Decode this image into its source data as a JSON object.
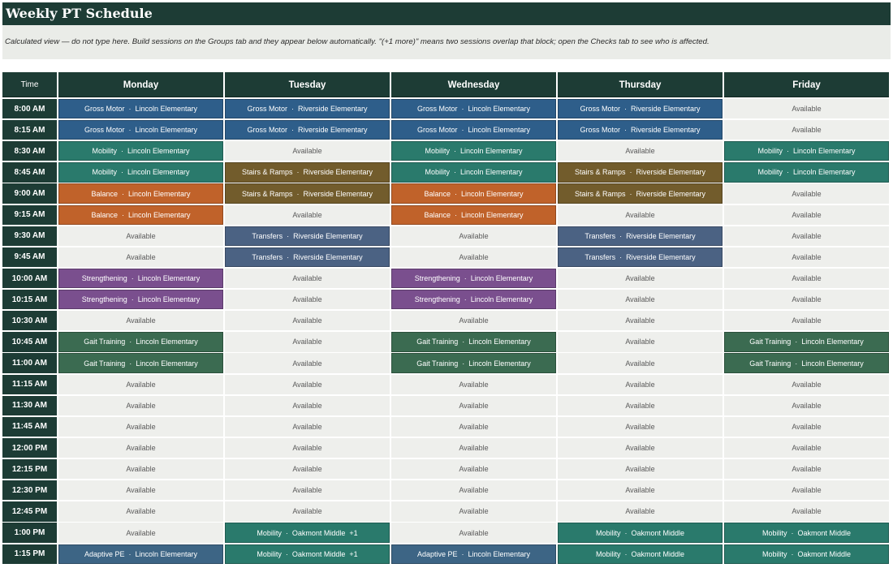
{
  "title": "Weekly PT Schedule",
  "note": "Calculated view — do not type here. Build sessions on the Groups tab and they appear below automatically. \"(+1 more)\" means two sessions overlap that block; open the Checks tab to see who is affected.",
  "columns": [
    "Time",
    "Monday",
    "Tuesday",
    "Wednesday",
    "Thursday",
    "Friday"
  ],
  "colors": {
    "Gross Motor": "#2e5e8a",
    "Mobility": "#2a7a6c",
    "Stairs & Ramps": "#725c2c",
    "Balance": "#c0622a",
    "Transfers": "#4b6283",
    "Strengthening": "#7a4f8e",
    "Gait Training": "#3b6b51",
    "Adaptive PE": "#3d6585",
    "Available": "#eeefec"
  },
  "rows": [
    {
      "time": "8:00 AM",
      "cells": [
        "Gross Motor  ·  Lincoln Elementary",
        "Gross Motor  ·  Riverside Elementary",
        "Gross Motor  ·  Lincoln Elementary",
        "Gross Motor  ·  Riverside Elementary",
        "Available"
      ],
      "kinds": [
        "Gross Motor",
        "Gross Motor",
        "Gross Motor",
        "Gross Motor",
        "Available"
      ]
    },
    {
      "time": "8:15 AM",
      "cells": [
        "Gross Motor  ·  Lincoln Elementary",
        "Gross Motor  ·  Riverside Elementary",
        "Gross Motor  ·  Lincoln Elementary",
        "Gross Motor  ·  Riverside Elementary",
        "Available"
      ],
      "kinds": [
        "Gross Motor",
        "Gross Motor",
        "Gross Motor",
        "Gross Motor",
        "Available"
      ]
    },
    {
      "time": "8:30 AM",
      "cells": [
        "Mobility  ·  Lincoln Elementary",
        "Available",
        "Mobility  ·  Lincoln Elementary",
        "Available",
        "Mobility  ·  Lincoln Elementary"
      ],
      "kinds": [
        "Mobility",
        "Available",
        "Mobility",
        "Available",
        "Mobility"
      ]
    },
    {
      "time": "8:45 AM",
      "cells": [
        "Mobility  ·  Lincoln Elementary",
        "Stairs & Ramps  ·  Riverside Elementary",
        "Mobility  ·  Lincoln Elementary",
        "Stairs & Ramps  ·  Riverside Elementary",
        "Mobility  ·  Lincoln Elementary"
      ],
      "kinds": [
        "Mobility",
        "Stairs & Ramps",
        "Mobility",
        "Stairs & Ramps",
        "Mobility"
      ]
    },
    {
      "time": "9:00 AM",
      "cells": [
        "Balance  ·  Lincoln Elementary",
        "Stairs & Ramps  ·  Riverside Elementary",
        "Balance  ·  Lincoln Elementary",
        "Stairs & Ramps  ·  Riverside Elementary",
        "Available"
      ],
      "kinds": [
        "Balance",
        "Stairs & Ramps",
        "Balance",
        "Stairs & Ramps",
        "Available"
      ]
    },
    {
      "time": "9:15 AM",
      "cells": [
        "Balance  ·  Lincoln Elementary",
        "Available",
        "Balance  ·  Lincoln Elementary",
        "Available",
        "Available"
      ],
      "kinds": [
        "Balance",
        "Available",
        "Balance",
        "Available",
        "Available"
      ]
    },
    {
      "time": "9:30 AM",
      "cells": [
        "Available",
        "Transfers  ·  Riverside Elementary",
        "Available",
        "Transfers  ·  Riverside Elementary",
        "Available"
      ],
      "kinds": [
        "Available",
        "Transfers",
        "Available",
        "Transfers",
        "Available"
      ]
    },
    {
      "time": "9:45 AM",
      "cells": [
        "Available",
        "Transfers  ·  Riverside Elementary",
        "Available",
        "Transfers  ·  Riverside Elementary",
        "Available"
      ],
      "kinds": [
        "Available",
        "Transfers",
        "Available",
        "Transfers",
        "Available"
      ]
    },
    {
      "time": "10:00 AM",
      "cells": [
        "Strengthening  ·  Lincoln Elementary",
        "Available",
        "Strengthening  ·  Lincoln Elementary",
        "Available",
        "Available"
      ],
      "kinds": [
        "Strengthening",
        "Available",
        "Strengthening",
        "Available",
        "Available"
      ]
    },
    {
      "time": "10:15 AM",
      "cells": [
        "Strengthening  ·  Lincoln Elementary",
        "Available",
        "Strengthening  ·  Lincoln Elementary",
        "Available",
        "Available"
      ],
      "kinds": [
        "Strengthening",
        "Available",
        "Strengthening",
        "Available",
        "Available"
      ]
    },
    {
      "time": "10:30 AM",
      "cells": [
        "Available",
        "Available",
        "Available",
        "Available",
        "Available"
      ],
      "kinds": [
        "Available",
        "Available",
        "Available",
        "Available",
        "Available"
      ]
    },
    {
      "time": "10:45 AM",
      "cells": [
        "Gait Training  ·  Lincoln Elementary",
        "Available",
        "Gait Training  ·  Lincoln Elementary",
        "Available",
        "Gait Training  ·  Lincoln Elementary"
      ],
      "kinds": [
        "Gait Training",
        "Available",
        "Gait Training",
        "Available",
        "Gait Training"
      ]
    },
    {
      "time": "11:00 AM",
      "cells": [
        "Gait Training  ·  Lincoln Elementary",
        "Available",
        "Gait Training  ·  Lincoln Elementary",
        "Available",
        "Gait Training  ·  Lincoln Elementary"
      ],
      "kinds": [
        "Gait Training",
        "Available",
        "Gait Training",
        "Available",
        "Gait Training"
      ]
    },
    {
      "time": "11:15 AM",
      "cells": [
        "Available",
        "Available",
        "Available",
        "Available",
        "Available"
      ],
      "kinds": [
        "Available",
        "Available",
        "Available",
        "Available",
        "Available"
      ]
    },
    {
      "time": "11:30 AM",
      "cells": [
        "Available",
        "Available",
        "Available",
        "Available",
        "Available"
      ],
      "kinds": [
        "Available",
        "Available",
        "Available",
        "Available",
        "Available"
      ]
    },
    {
      "time": "11:45 AM",
      "cells": [
        "Available",
        "Available",
        "Available",
        "Available",
        "Available"
      ],
      "kinds": [
        "Available",
        "Available",
        "Available",
        "Available",
        "Available"
      ]
    },
    {
      "time": "12:00 PM",
      "cells": [
        "Available",
        "Available",
        "Available",
        "Available",
        "Available"
      ],
      "kinds": [
        "Available",
        "Available",
        "Available",
        "Available",
        "Available"
      ]
    },
    {
      "time": "12:15 PM",
      "cells": [
        "Available",
        "Available",
        "Available",
        "Available",
        "Available"
      ],
      "kinds": [
        "Available",
        "Available",
        "Available",
        "Available",
        "Available"
      ]
    },
    {
      "time": "12:30 PM",
      "cells": [
        "Available",
        "Available",
        "Available",
        "Available",
        "Available"
      ],
      "kinds": [
        "Available",
        "Available",
        "Available",
        "Available",
        "Available"
      ]
    },
    {
      "time": "12:45 PM",
      "cells": [
        "Available",
        "Available",
        "Available",
        "Available",
        "Available"
      ],
      "kinds": [
        "Available",
        "Available",
        "Available",
        "Available",
        "Available"
      ]
    },
    {
      "time": "1:00 PM",
      "cells": [
        "Available",
        "Mobility  ·  Oakmont Middle  +1",
        "Available",
        "Mobility  ·  Oakmont Middle",
        "Mobility  ·  Oakmont Middle"
      ],
      "kinds": [
        "Available",
        "Mobility",
        "Available",
        "Mobility",
        "Mobility"
      ]
    },
    {
      "time": "1:15 PM",
      "cells": [
        "Adaptive PE  ·  Lincoln Elementary",
        "Mobility  ·  Oakmont Middle  +1",
        "Adaptive PE  ·  Lincoln Elementary",
        "Mobility  ·  Oakmont Middle",
        "Mobility  ·  Oakmont Middle"
      ],
      "kinds": [
        "Adaptive PE",
        "Mobility",
        "Adaptive PE",
        "Mobility",
        "Mobility"
      ]
    }
  ]
}
